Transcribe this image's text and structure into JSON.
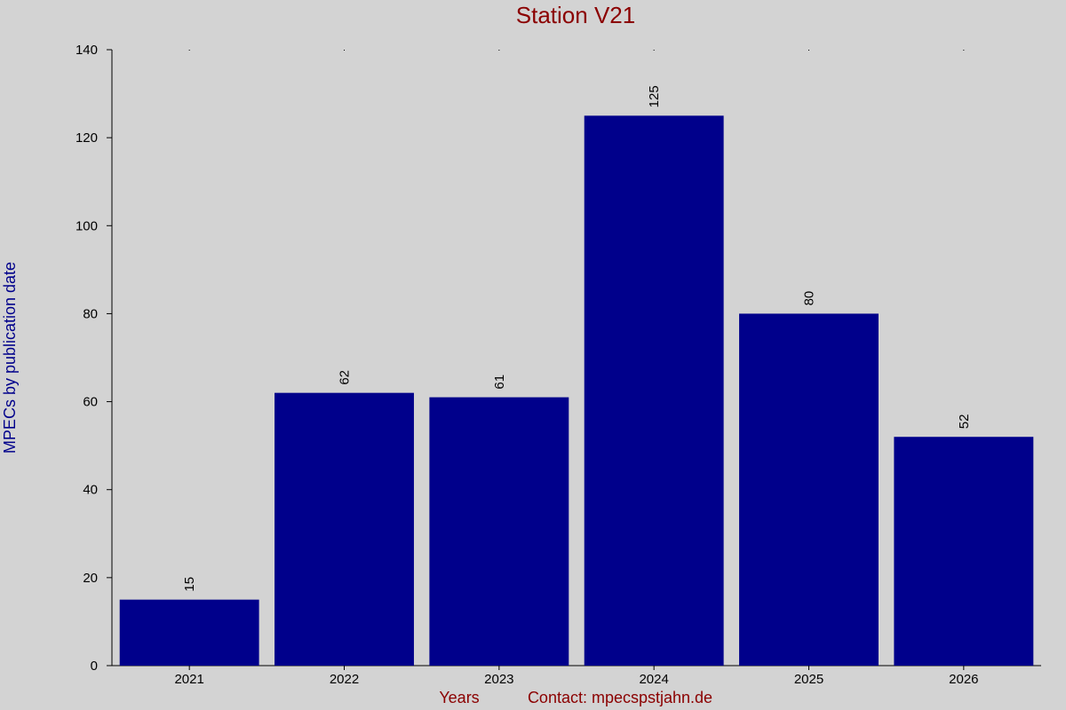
{
  "colors": {
    "background": "#d3d3d3",
    "bar": "#00008b",
    "title": "#8b0000",
    "ylabel": "#00008b",
    "xlabel": "#8b0000"
  },
  "chart_data": {
    "type": "bar",
    "title": "Station V21",
    "xlabel": "Years",
    "contact": "Contact: mpecspstjahn.de",
    "ylabel": "MPECs by publication date",
    "categories": [
      "2021",
      "2022",
      "2023",
      "2024",
      "2025",
      "2026"
    ],
    "values": [
      15,
      62,
      61,
      125,
      80,
      52
    ],
    "ylim": [
      0,
      140
    ],
    "yticks": [
      0,
      20,
      40,
      60,
      80,
      100,
      120,
      140
    ],
    "data_labels": true,
    "grid": false
  }
}
